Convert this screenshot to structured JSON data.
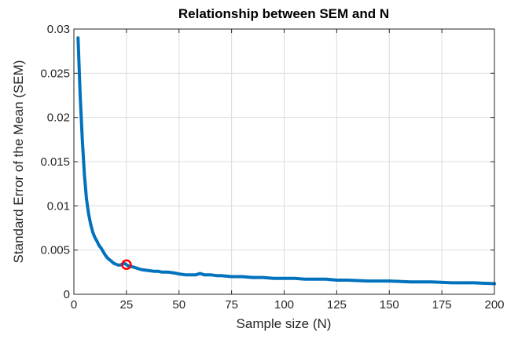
{
  "chart_data": {
    "type": "line",
    "title": "Relationship between SEM and N",
    "xlabel": "Sample size (N)",
    "ylabel": "Standard Error of the Mean (SEM)",
    "xlim": [
      0,
      200
    ],
    "ylim": [
      0,
      0.03
    ],
    "xticks": [
      "0",
      "25",
      "50",
      "75",
      "100",
      "125",
      "150",
      "175",
      "200"
    ],
    "yticks": [
      "0",
      "0.005",
      "0.01",
      "0.015",
      "0.02",
      "0.025",
      "0.03"
    ],
    "grid": true,
    "series_color": "#0072bd",
    "marker_color": "#ff0000",
    "series": [
      {
        "x": [
          2,
          3,
          4,
          5,
          6,
          7,
          8,
          9,
          10,
          11,
          12,
          13,
          14,
          15,
          16,
          17,
          18,
          19,
          20,
          21,
          22,
          23,
          24,
          25,
          26,
          28,
          30,
          32,
          35,
          38,
          40,
          42,
          45,
          48,
          50,
          53,
          55,
          58,
          60,
          62,
          65,
          68,
          70,
          75,
          80,
          85,
          90,
          95,
          100,
          105,
          110,
          115,
          120,
          125,
          130,
          140,
          150,
          160,
          170,
          180,
          190,
          200
        ],
        "y": [
          0.029,
          0.0225,
          0.0175,
          0.0135,
          0.0108,
          0.0091,
          0.0079,
          0.007,
          0.0064,
          0.006,
          0.0055,
          0.0052,
          0.0048,
          0.0044,
          0.0041,
          0.0039,
          0.0037,
          0.0035,
          0.0034,
          0.0033,
          0.0033,
          0.0034,
          0.0035,
          0.00335,
          0.0032,
          0.0031,
          0.00295,
          0.0028,
          0.0027,
          0.0026,
          0.0026,
          0.0025,
          0.0025,
          0.0024,
          0.0023,
          0.0022,
          0.0022,
          0.0022,
          0.00235,
          0.0022,
          0.0022,
          0.0021,
          0.0021,
          0.002,
          0.002,
          0.0019,
          0.0019,
          0.0018,
          0.0018,
          0.0018,
          0.0017,
          0.0017,
          0.0017,
          0.0016,
          0.0016,
          0.0015,
          0.0015,
          0.0014,
          0.0014,
          0.0013,
          0.0013,
          0.0012
        ]
      }
    ],
    "highlight": {
      "x": 25,
      "y": 0.00335
    }
  }
}
